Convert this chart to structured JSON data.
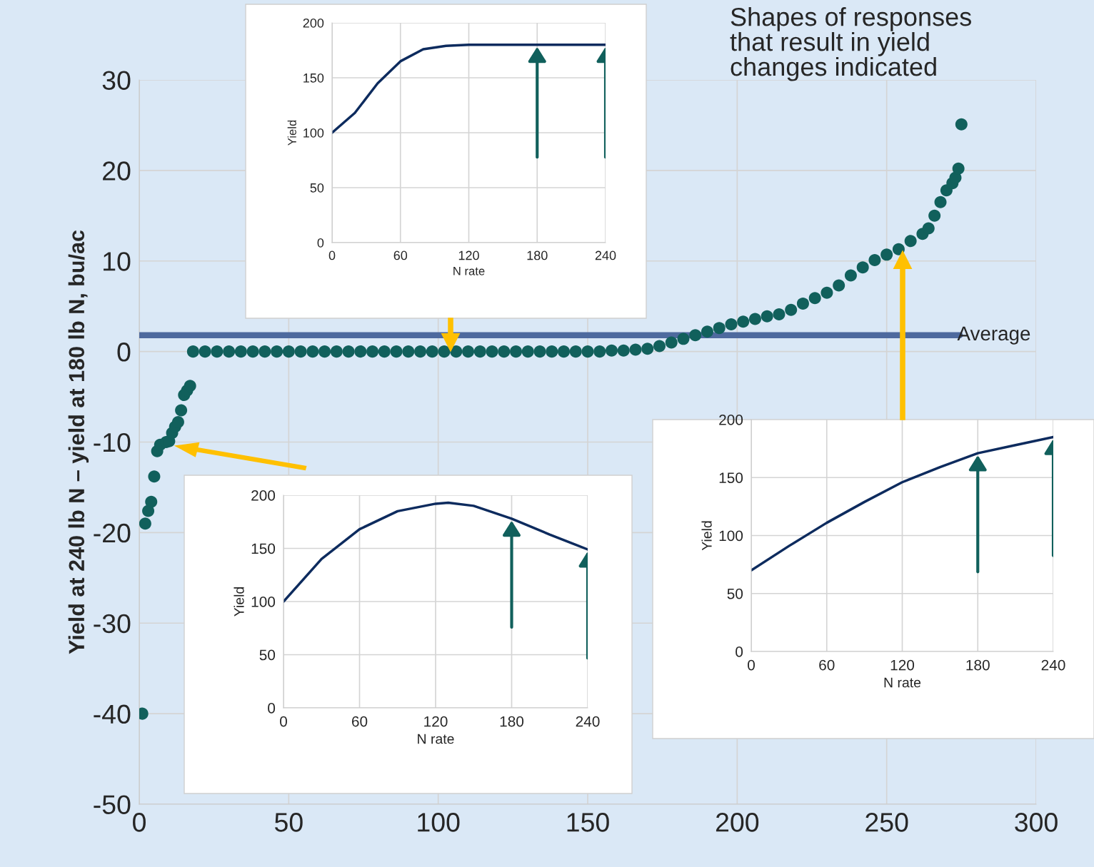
{
  "chart_data": [
    {
      "type": "scatter",
      "ylabel": "Yield at 240 lb N – yield at 180 lb N, bu/ac",
      "xlim": [
        0,
        300
      ],
      "xticks": [
        0,
        50,
        100,
        150,
        200,
        250,
        300
      ],
      "ylim": [
        -50,
        30
      ],
      "yticks": [
        -50,
        -40,
        -30,
        -20,
        -10,
        0,
        10,
        20,
        30
      ],
      "grid": true,
      "marker": "circle",
      "series": [
        {
          "color": "#11605c",
          "x": [
            1,
            2,
            3,
            4,
            5,
            6,
            7,
            9,
            10,
            11,
            12,
            13,
            14,
            15,
            16,
            17,
            18,
            22,
            26,
            30,
            34,
            38,
            42,
            46,
            50,
            54,
            58,
            62,
            66,
            70,
            74,
            78,
            82,
            86,
            90,
            94,
            98,
            102,
            106,
            110,
            114,
            118,
            122,
            126,
            130,
            134,
            138,
            142,
            146,
            150,
            154,
            158,
            162,
            166,
            170,
            174,
            178,
            182,
            186,
            190,
            194,
            198,
            202,
            206,
            210,
            214,
            218,
            222,
            226,
            230,
            234,
            238,
            242,
            246,
            250,
            254,
            258,
            262,
            264,
            266,
            268,
            270,
            272,
            273,
            274,
            275
          ],
          "values": [
            -40,
            -19,
            -17.6,
            -16.6,
            -13.8,
            -11,
            -10.3,
            -10,
            -9.9,
            -9,
            -8.3,
            -7.8,
            -6.5,
            -4.8,
            -4.3,
            -3.8,
            0,
            0,
            0,
            0,
            0,
            0,
            0,
            0,
            0,
            0,
            0,
            0,
            0,
            0,
            0,
            0,
            0,
            0,
            0,
            0,
            0,
            0,
            0,
            0,
            0,
            0,
            0,
            0,
            0,
            0,
            0,
            0,
            0,
            0,
            0,
            0.1,
            0.1,
            0.2,
            0.3,
            0.6,
            1.0,
            1.4,
            1.8,
            2.2,
            2.6,
            3.0,
            3.3,
            3.6,
            3.9,
            4.1,
            4.6,
            5.3,
            5.9,
            6.5,
            7.3,
            8.4,
            9.3,
            10.1,
            10.7,
            11.3,
            12.2,
            13.0,
            13.6,
            15.0,
            16.5,
            17.8,
            18.6,
            19.2,
            20.2,
            25.1
          ]
        }
      ],
      "ref_lines": [
        {
          "axis": "y",
          "value": 1.8,
          "label": "Average",
          "color": "#4e6a9e"
        }
      ],
      "annotations": [
        "Shapes of responses\nthat result in yield\nchanges indicated"
      ]
    },
    {
      "type": "line",
      "xlabel": "N rate",
      "ylabel": "Yield",
      "xlim": [
        0,
        240
      ],
      "xticks": [
        0,
        60,
        120,
        180,
        240
      ],
      "ylim": [
        0,
        200
      ],
      "yticks": [
        0,
        50,
        100,
        150,
        200
      ],
      "grid": true,
      "marker": "none",
      "series": [
        {
          "color": "#0d2b5e",
          "x": [
            0,
            20,
            40,
            60,
            80,
            100,
            120,
            150,
            180,
            210,
            240
          ],
          "values": [
            100,
            118,
            145,
            165,
            176,
            179,
            180,
            180,
            180,
            180,
            180
          ]
        }
      ]
    },
    {
      "type": "line",
      "xlabel": "N rate",
      "ylabel": "Yield",
      "xlim": [
        0,
        240
      ],
      "xticks": [
        0,
        60,
        120,
        180,
        240
      ],
      "ylim": [
        0,
        200
      ],
      "yticks": [
        0,
        50,
        100,
        150,
        200
      ],
      "grid": true,
      "marker": "none",
      "series": [
        {
          "color": "#0d2b5e",
          "x": [
            0,
            30,
            60,
            90,
            120,
            130,
            150,
            180,
            210,
            240
          ],
          "values": [
            100,
            140,
            168,
            185,
            192,
            193,
            190,
            178,
            163,
            149
          ]
        }
      ]
    },
    {
      "type": "line",
      "xlabel": "N rate",
      "ylabel": "Yield",
      "xlim": [
        0,
        240
      ],
      "xticks": [
        0,
        60,
        120,
        180,
        240
      ],
      "ylim": [
        0,
        200
      ],
      "yticks": [
        0,
        50,
        100,
        150,
        200
      ],
      "grid": true,
      "marker": "none",
      "series": [
        {
          "color": "#0d2b5e",
          "x": [
            0,
            30,
            60,
            90,
            120,
            150,
            180,
            210,
            240
          ],
          "values": [
            70,
            91,
            111,
            129,
            146,
            159,
            171,
            178,
            185
          ]
        }
      ]
    }
  ]
}
